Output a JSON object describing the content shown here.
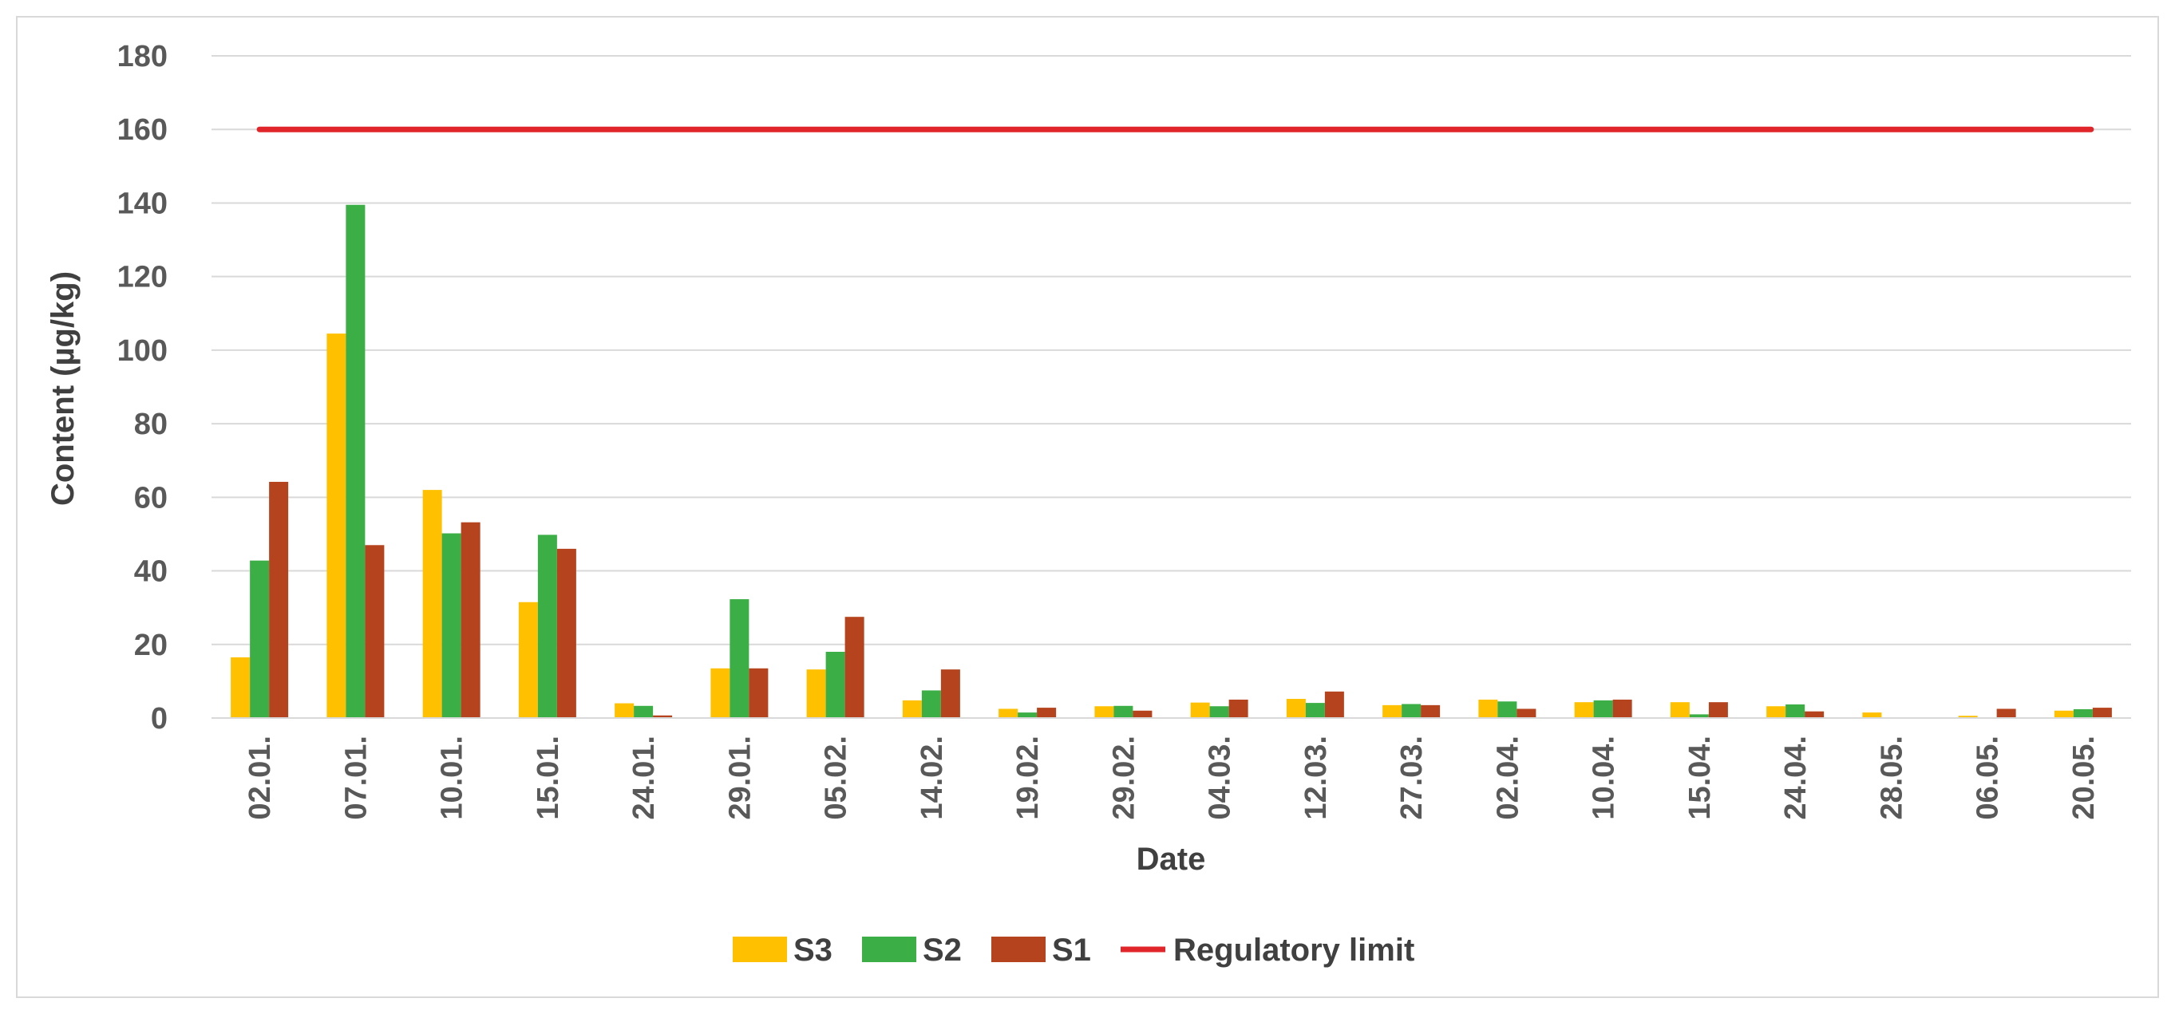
{
  "chart_data": {
    "type": "bar",
    "title": "",
    "xlabel": "Date",
    "ylabel": "Content (µg/kg)",
    "ylim": [
      0,
      180
    ],
    "yticks": [
      "0",
      "20",
      "40",
      "60",
      "80",
      "100",
      "120",
      "140",
      "160",
      "180"
    ],
    "grid": true,
    "legend_position": "bottom",
    "categories": [
      "02.01.",
      "07.01.",
      "10.01.",
      "15.01.",
      "24.01.",
      "29.01.",
      "05.02.",
      "14.02.",
      "19.02.",
      "29.02.",
      "04.03.",
      "12.03.",
      "27.03.",
      "02.04.",
      "10.04.",
      "15.04.",
      "24.04.",
      "28.05.",
      "06.05.",
      "20.05."
    ],
    "series": [
      {
        "name": "S3",
        "color": "#ffc000",
        "values": [
          16.5,
          104.5,
          62,
          31.5,
          4,
          13.5,
          13.2,
          4.8,
          2.5,
          3.2,
          4.2,
          5.2,
          3.5,
          5,
          4.3,
          4.3,
          3.2,
          1.5,
          0.6,
          2
        ]
      },
      {
        "name": "S2",
        "color": "#3cae46",
        "values": [
          42.8,
          139.5,
          50.2,
          49.8,
          3.3,
          32.3,
          18,
          7.5,
          1.5,
          3.3,
          3.2,
          4.1,
          3.8,
          4.5,
          4.8,
          1,
          3.7,
          0,
          0,
          2.4
        ]
      },
      {
        "name": "S1",
        "color": "#b5431d",
        "values": [
          64.2,
          47,
          53.2,
          46,
          0.7,
          13.5,
          27.5,
          13.2,
          2.8,
          2,
          5,
          7.2,
          3.5,
          2.5,
          5,
          4.3,
          1.8,
          0,
          2.5,
          2.8
        ]
      }
    ],
    "reference_line": {
      "name": "Regulatory limit",
      "value": 160,
      "color": "#e0262a"
    },
    "legend": [
      "S3",
      "S2",
      "S1",
      "Regulatory limit"
    ]
  }
}
